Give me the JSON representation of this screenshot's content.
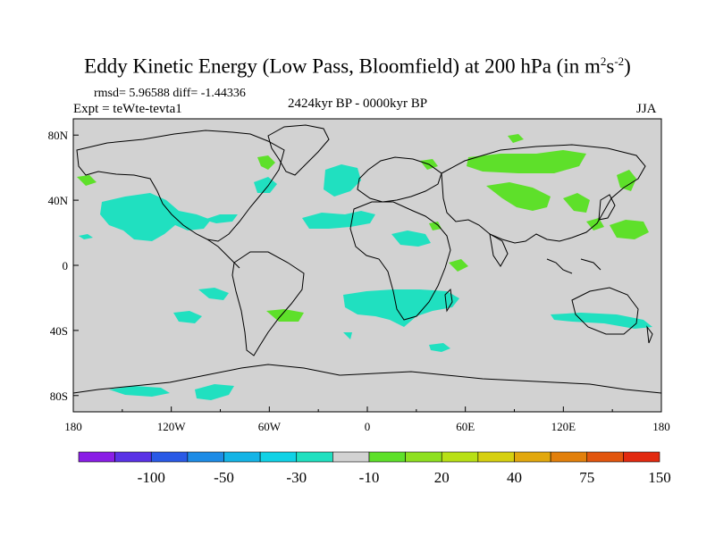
{
  "title": {
    "main": "Eddy Kinetic Energy (Low Pass, Bloomfield) at 200 hPa (in m",
    "sup1": "2",
    "mid": "s",
    "sup2": "-2",
    "end": ")"
  },
  "stats": "rmsd= 5.96588 diff= -1.44336",
  "experiment": "Expt = teWte-tevta1",
  "period": "2424kyr BP - 0000kyr BP",
  "season": "JJA",
  "colors": {
    "land_bg": "#d2d2d2",
    "negative_fill": "#20e0c0",
    "positive_fill": "#5ee02a",
    "coast": "#000000"
  },
  "map": {
    "lon_range": [
      -180,
      180
    ],
    "lat_range": [
      -90,
      90
    ],
    "x_ticks": [
      {
        "lon": -180,
        "label": "180"
      },
      {
        "lon": -120,
        "label": "120W"
      },
      {
        "lon": -60,
        "label": "60W"
      },
      {
        "lon": 0,
        "label": "0"
      },
      {
        "lon": 60,
        "label": "60E"
      },
      {
        "lon": 120,
        "label": "120E"
      },
      {
        "lon": 180,
        "label": "180"
      }
    ],
    "y_ticks": [
      {
        "lat": 80,
        "label": "80N"
      },
      {
        "lat": 40,
        "label": "40N"
      },
      {
        "lat": 0,
        "label": "0"
      },
      {
        "lat": -40,
        "label": "40S"
      },
      {
        "lat": -80,
        "label": "80S"
      }
    ]
  },
  "colorbar": {
    "colors": [
      "#8a1ee6",
      "#5a32e6",
      "#2a5ae6",
      "#1e8ce6",
      "#14b4e6",
      "#10d2e6",
      "#20e0c0",
      "#d2d2d2",
      "#5ee02a",
      "#8ee020",
      "#b8e016",
      "#d6d010",
      "#e2a80e",
      "#e2800c",
      "#e2560e",
      "#e22a10"
    ],
    "labels": [
      "-100",
      "-50",
      "-30",
      "-10",
      "20",
      "40",
      "75",
      "150"
    ]
  }
}
